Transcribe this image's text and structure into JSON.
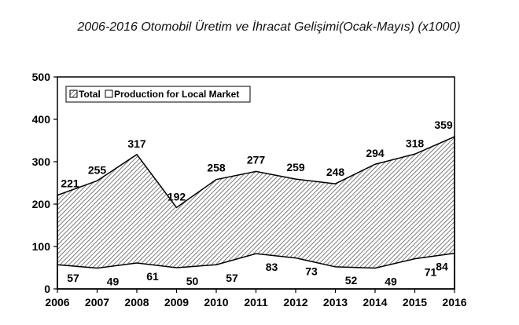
{
  "chart_data": {
    "type": "area",
    "title": "2006-2016 Otomobil Üretim ve İhracat Gelişimi(Ocak-Mayıs) (x1000)",
    "categories": [
      "2006",
      "2007",
      "2008",
      "2009",
      "2010",
      "2011",
      "2012",
      "2013",
      "2014",
      "2015",
      "2016"
    ],
    "series": [
      {
        "name": "Total",
        "values": [
          221,
          255,
          317,
          192,
          258,
          277,
          259,
          248,
          294,
          318,
          359
        ],
        "pattern": "hatched"
      },
      {
        "name": "Production for Local Market",
        "values": [
          57,
          49,
          61,
          50,
          57,
          83,
          73,
          52,
          49,
          71,
          84
        ],
        "pattern": "white"
      }
    ],
    "ylim": [
      0,
      500
    ],
    "yticks": [
      0,
      100,
      200,
      300,
      400,
      500
    ],
    "xlabel": "",
    "ylabel": "",
    "legend_position": "top-left",
    "grid": false,
    "colors": {
      "line": "#000000",
      "hatch": "#555555",
      "fill_white": "#ffffff"
    }
  }
}
